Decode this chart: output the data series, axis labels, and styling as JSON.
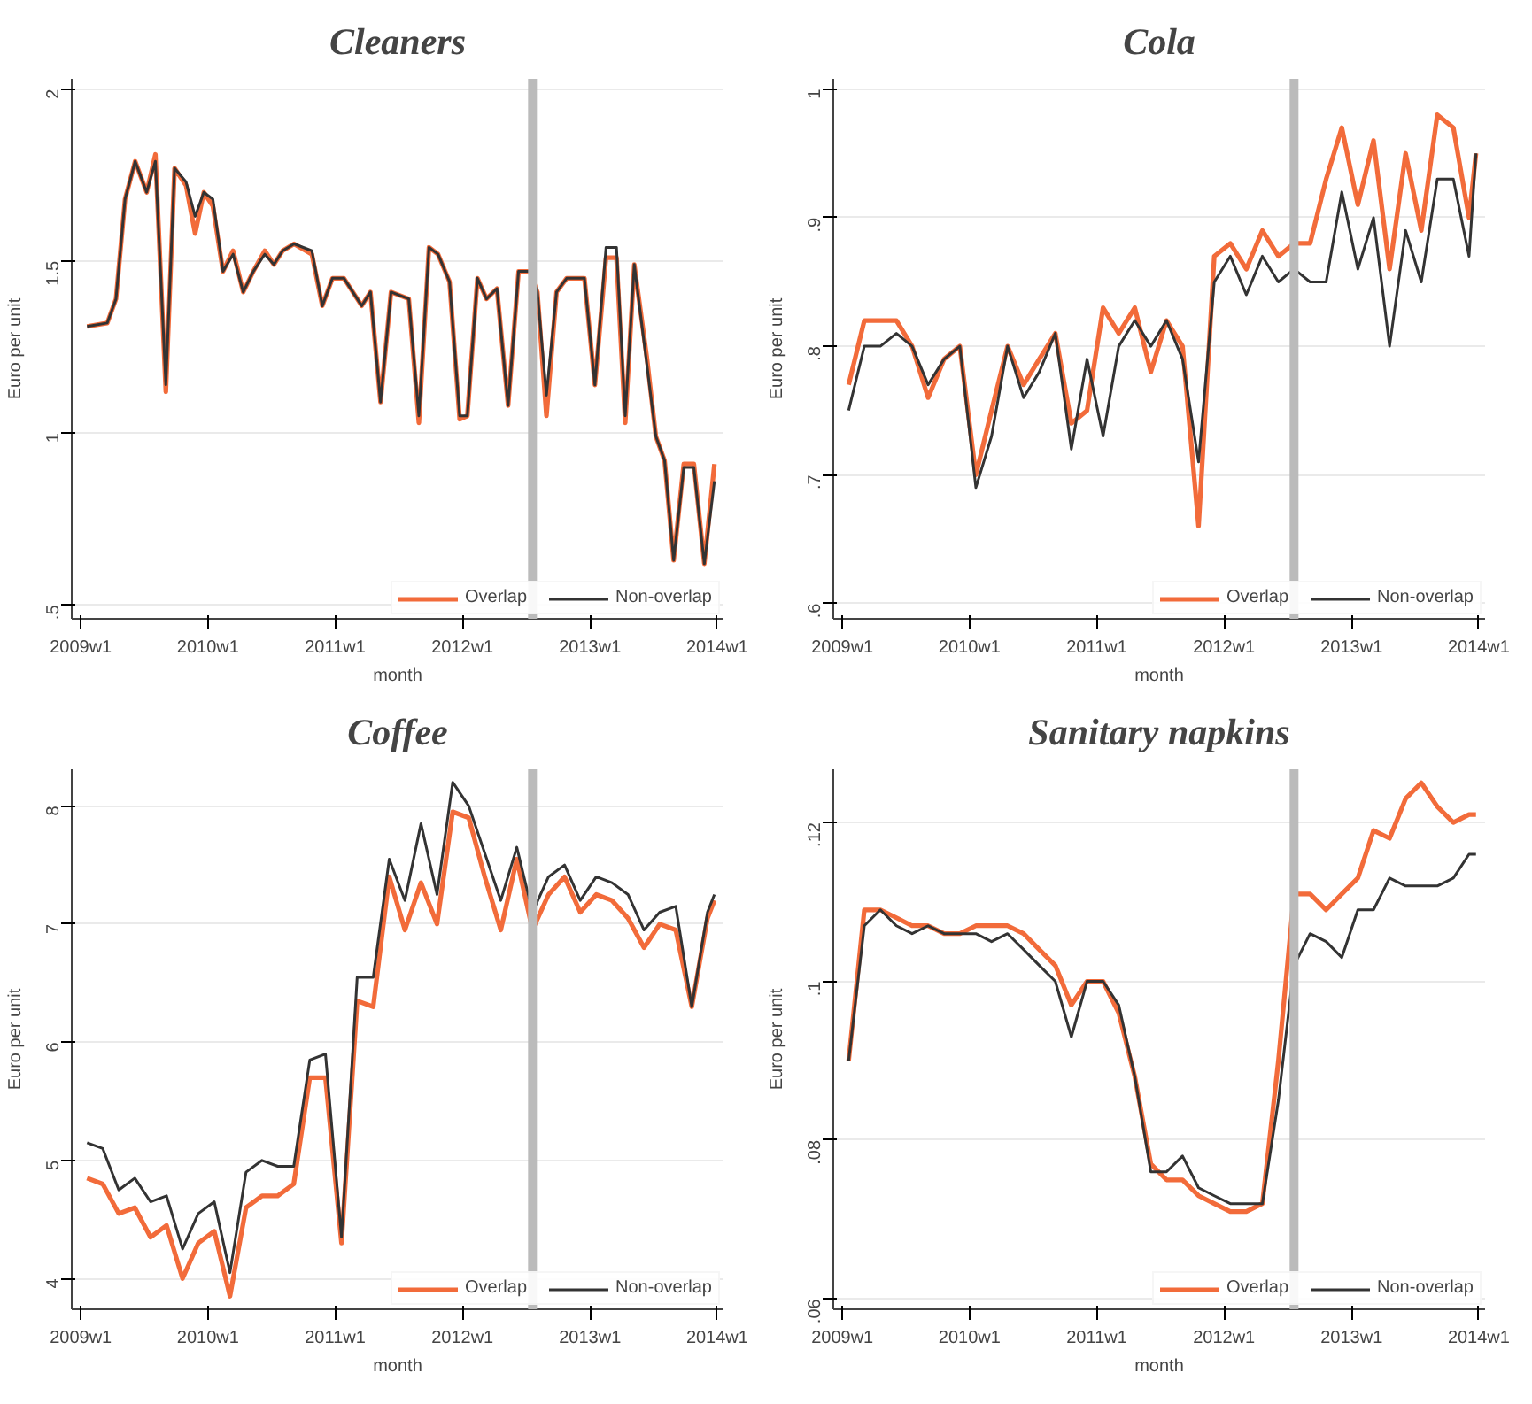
{
  "chart_data": [
    {
      "type": "line",
      "title": "Cleaners",
      "xlabel": "month",
      "ylabel": "Euro per unit",
      "grid": "y",
      "legend": "bottom right",
      "x": [
        "2009-01-19",
        "2009-03-18",
        "2009-04-12",
        "2009-05-08",
        "2009-06-06",
        "2009-07-09",
        "2009-08-03",
        "2009-09-02",
        "2009-09-27",
        "2009-10-30",
        "2009-11-25",
        "2009-12-20",
        "2010-01-15",
        "2010-02-13",
        "2010-03-14",
        "2010-04-12",
        "2010-05-11",
        "2010-06-13",
        "2010-07-09",
        "2010-08-03",
        "2010-09-05",
        "2010-10-26",
        "2010-11-25",
        "2010-12-24",
        "2011-01-26",
        "2011-03-18",
        "2011-04-12",
        "2011-05-11",
        "2011-06-10",
        "2011-07-31",
        "2011-08-29",
        "2011-09-27",
        "2011-10-23",
        "2011-11-25",
        "2011-12-24",
        "2012-01-15",
        "2012-02-13",
        "2012-03-10",
        "2012-04-09",
        "2012-05-11",
        "2012-06-10",
        "2012-07-12",
        "2012-08-03",
        "2012-08-29",
        "2012-09-27",
        "2012-10-26",
        "2012-12-16",
        "2013-01-15",
        "2013-02-16",
        "2013-03-18",
        "2013-04-12",
        "2013-05-08",
        "2013-06-13",
        "2013-07-09",
        "2013-08-03",
        "2013-08-29",
        "2013-09-27",
        "2013-10-26",
        "2013-11-25",
        "2013-12-24"
      ],
      "series": [
        {
          "name": "Overlap",
          "color": "#f26b3a",
          "values": [
            1.31,
            1.32,
            1.39,
            1.68,
            1.79,
            1.7,
            1.81,
            1.12,
            1.77,
            1.72,
            1.58,
            1.7,
            1.66,
            1.47,
            1.53,
            1.41,
            1.47,
            1.53,
            1.49,
            1.53,
            1.55,
            1.52,
            1.37,
            1.45,
            1.45,
            1.37,
            1.41,
            1.09,
            1.41,
            1.39,
            1.03,
            1.54,
            1.52,
            1.44,
            1.04,
            1.05,
            1.45,
            1.39,
            1.42,
            1.08,
            1.47,
            1.47,
            1.41,
            1.05,
            1.41,
            1.45,
            1.45,
            1.14,
            1.51,
            1.51,
            1.03,
            1.49,
            1.22,
            0.99,
            0.92,
            0.63,
            0.91,
            0.91,
            0.62,
            0.91
          ]
        },
        {
          "name": "Non-overlap",
          "color": "#333333",
          "values": [
            1.31,
            1.32,
            1.39,
            1.68,
            1.79,
            1.7,
            1.79,
            1.14,
            1.77,
            1.73,
            1.63,
            1.7,
            1.68,
            1.47,
            1.52,
            1.41,
            1.47,
            1.52,
            1.49,
            1.53,
            1.55,
            1.53,
            1.37,
            1.45,
            1.45,
            1.37,
            1.41,
            1.09,
            1.41,
            1.39,
            1.05,
            1.54,
            1.52,
            1.44,
            1.05,
            1.05,
            1.45,
            1.39,
            1.42,
            1.08,
            1.47,
            1.47,
            1.41,
            1.11,
            1.41,
            1.45,
            1.45,
            1.14,
            1.54,
            1.54,
            1.05,
            1.49,
            1.2,
            0.99,
            0.92,
            0.63,
            0.9,
            0.9,
            0.62,
            0.86
          ]
        }
      ],
      "xlim": [
        "2008-12-06",
        "2014-01-19"
      ],
      "xticks": [
        {
          "value": "2009-01-01",
          "label": "2009w1"
        },
        {
          "value": "2010-01-01",
          "label": "2010w1"
        },
        {
          "value": "2011-01-01",
          "label": "2011w1"
        },
        {
          "value": "2012-01-01",
          "label": "2012w1"
        },
        {
          "value": "2013-01-01",
          "label": "2013w1"
        },
        {
          "value": "2014-01-01",
          "label": "2014w1"
        }
      ],
      "ylim": [
        0.46,
        2.03
      ],
      "yticks": [
        {
          "value": 0.5,
          "label": ".5"
        },
        1,
        1.5,
        2
      ],
      "ref_lines": [
        {
          "axis": "x",
          "value": "2012-07-20",
          "color": "#bbbbbb"
        }
      ]
    },
    {
      "type": "line",
      "title": "Cola",
      "xlabel": "month",
      "ylabel": "Euro per unit",
      "grid": "y",
      "legend": "bottom right",
      "x": [
        "2009-01-19",
        "2009-03-05",
        "2009-04-20",
        "2009-06-05",
        "2009-07-20",
        "2009-09-04",
        "2009-10-20",
        "2009-12-04",
        "2010-01-19",
        "2010-03-05",
        "2010-04-20",
        "2010-06-05",
        "2010-07-20",
        "2010-09-04",
        "2010-10-20",
        "2010-12-04",
        "2011-01-19",
        "2011-03-05",
        "2011-04-20",
        "2011-06-05",
        "2011-07-20",
        "2011-09-04",
        "2011-10-20",
        "2011-12-04",
        "2012-01-19",
        "2012-03-05",
        "2012-04-20",
        "2012-06-05",
        "2012-07-20",
        "2012-09-04",
        "2012-10-20",
        "2012-12-04",
        "2013-01-19",
        "2013-03-05",
        "2013-04-20",
        "2013-06-05",
        "2013-07-20",
        "2013-09-04",
        "2013-10-20",
        "2013-12-04",
        "2013-12-24"
      ],
      "series": [
        {
          "name": "Overlap",
          "color": "#f26b3a",
          "values": [
            0.77,
            0.82,
            0.82,
            0.82,
            0.8,
            0.76,
            0.79,
            0.8,
            0.7,
            0.75,
            0.8,
            0.77,
            0.79,
            0.81,
            0.74,
            0.75,
            0.83,
            0.81,
            0.83,
            0.78,
            0.82,
            0.8,
            0.66,
            0.87,
            0.88,
            0.86,
            0.89,
            0.87,
            0.88,
            0.88,
            0.93,
            0.97,
            0.91,
            0.96,
            0.86,
            0.95,
            0.89,
            0.98,
            0.97,
            0.9,
            0.95
          ]
        },
        {
          "name": "Non-overlap",
          "color": "#333333",
          "values": [
            0.75,
            0.8,
            0.8,
            0.81,
            0.8,
            0.77,
            0.79,
            0.8,
            0.69,
            0.73,
            0.8,
            0.76,
            0.78,
            0.81,
            0.72,
            0.79,
            0.73,
            0.8,
            0.82,
            0.8,
            0.82,
            0.79,
            0.71,
            0.85,
            0.87,
            0.84,
            0.87,
            0.85,
            0.86,
            0.85,
            0.85,
            0.92,
            0.86,
            0.9,
            0.8,
            0.89,
            0.85,
            0.93,
            0.93,
            0.87,
            0.95
          ]
        }
      ],
      "xlim": [
        "2008-12-06",
        "2014-01-19"
      ],
      "xticks": [
        {
          "value": "2009-01-01",
          "label": "2009w1"
        },
        {
          "value": "2010-01-01",
          "label": "2010w1"
        },
        {
          "value": "2011-01-01",
          "label": "2011w1"
        },
        {
          "value": "2012-01-01",
          "label": "2012w1"
        },
        {
          "value": "2013-01-01",
          "label": "2013w1"
        },
        {
          "value": "2014-01-01",
          "label": "2014w1"
        }
      ],
      "ylim": [
        0.588,
        1.008
      ],
      "yticks": [
        {
          "value": 0.6,
          "label": ".6"
        },
        {
          "value": 0.7,
          "label": ".7"
        },
        {
          "value": 0.8,
          "label": ".8"
        },
        {
          "value": 0.9,
          "label": ".9"
        },
        1
      ],
      "ref_lines": [
        {
          "axis": "x",
          "value": "2012-07-20",
          "color": "#bbbbbb"
        }
      ]
    },
    {
      "type": "line",
      "title": "Coffee",
      "xlabel": "month",
      "ylabel": "Euro per unit",
      "grid": "y",
      "legend": "bottom right",
      "x": [
        "2009-01-19",
        "2009-03-05",
        "2009-04-20",
        "2009-06-05",
        "2009-07-20",
        "2009-09-04",
        "2009-10-20",
        "2009-12-04",
        "2010-01-19",
        "2010-03-05",
        "2010-04-20",
        "2010-06-05",
        "2010-07-20",
        "2010-09-04",
        "2010-10-20",
        "2010-12-04",
        "2011-01-19",
        "2011-03-05",
        "2011-04-20",
        "2011-06-05",
        "2011-07-20",
        "2011-09-04",
        "2011-10-20",
        "2011-12-04",
        "2012-01-19",
        "2012-03-05",
        "2012-04-20",
        "2012-06-05",
        "2012-07-20",
        "2012-09-04",
        "2012-10-20",
        "2012-12-04",
        "2013-01-19",
        "2013-03-05",
        "2013-04-20",
        "2013-06-05",
        "2013-07-20",
        "2013-09-04",
        "2013-10-20",
        "2013-12-04",
        "2013-12-24"
      ],
      "series": [
        {
          "name": "Overlap",
          "color": "#f26b3a",
          "values": [
            4.85,
            4.8,
            4.55,
            4.6,
            4.35,
            4.45,
            4.0,
            4.3,
            4.4,
            3.85,
            4.6,
            4.7,
            4.7,
            4.8,
            5.7,
            5.7,
            4.3,
            6.35,
            6.3,
            7.4,
            6.95,
            7.35,
            7.0,
            7.95,
            7.9,
            7.4,
            6.95,
            7.55,
            6.95,
            7.25,
            7.4,
            7.1,
            7.25,
            7.2,
            7.05,
            6.8,
            7.0,
            6.95,
            6.3,
            7.05,
            7.2
          ]
        },
        {
          "name": "Non-overlap",
          "color": "#333333",
          "values": [
            5.15,
            5.1,
            4.75,
            4.85,
            4.65,
            4.7,
            4.25,
            4.55,
            4.65,
            4.05,
            4.9,
            5.0,
            4.95,
            4.95,
            5.85,
            5.9,
            4.35,
            6.55,
            6.55,
            7.55,
            7.2,
            7.85,
            7.25,
            8.2,
            8.0,
            7.6,
            7.2,
            7.65,
            7.1,
            7.4,
            7.5,
            7.2,
            7.4,
            7.35,
            7.25,
            6.95,
            7.1,
            7.15,
            6.3,
            7.1,
            7.25
          ]
        }
      ],
      "xlim": [
        "2008-12-06",
        "2014-01-19"
      ],
      "xticks": [
        {
          "value": "2009-01-01",
          "label": "2009w1"
        },
        {
          "value": "2010-01-01",
          "label": "2010w1"
        },
        {
          "value": "2011-01-01",
          "label": "2011w1"
        },
        {
          "value": "2012-01-01",
          "label": "2012w1"
        },
        {
          "value": "2013-01-01",
          "label": "2013w1"
        },
        {
          "value": "2014-01-01",
          "label": "2014w1"
        }
      ],
      "ylim": [
        3.74,
        8.31
      ],
      "yticks": [
        4,
        5,
        6,
        7,
        8
      ],
      "ref_lines": [
        {
          "axis": "x",
          "value": "2012-07-20",
          "color": "#bbbbbb"
        }
      ]
    },
    {
      "type": "line",
      "title": "Sanitary napkins",
      "xlabel": "month",
      "ylabel": "Euro per unit",
      "grid": "y",
      "legend": "bottom right",
      "x": [
        "2009-01-19",
        "2009-03-05",
        "2009-04-20",
        "2009-06-05",
        "2009-07-20",
        "2009-09-04",
        "2009-10-20",
        "2009-12-04",
        "2010-01-19",
        "2010-03-05",
        "2010-04-20",
        "2010-06-05",
        "2010-07-20",
        "2010-09-04",
        "2010-10-20",
        "2010-12-04",
        "2011-01-19",
        "2011-03-05",
        "2011-04-20",
        "2011-06-05",
        "2011-07-20",
        "2011-09-04",
        "2011-10-20",
        "2011-12-04",
        "2012-01-19",
        "2012-03-05",
        "2012-04-20",
        "2012-06-05",
        "2012-07-20",
        "2012-09-04",
        "2012-10-20",
        "2012-12-04",
        "2013-01-19",
        "2013-03-05",
        "2013-04-20",
        "2013-06-05",
        "2013-07-20",
        "2013-09-04",
        "2013-10-20",
        "2013-12-04",
        "2013-12-24"
      ],
      "series": [
        {
          "name": "Overlap",
          "color": "#f26b3a",
          "values": [
            0.09,
            0.109,
            0.109,
            0.108,
            0.107,
            0.107,
            0.106,
            0.106,
            0.107,
            0.107,
            0.107,
            0.106,
            0.104,
            0.102,
            0.097,
            0.1,
            0.1,
            0.096,
            0.088,
            0.077,
            0.075,
            0.075,
            0.073,
            0.072,
            0.071,
            0.071,
            0.072,
            0.09,
            0.111,
            0.111,
            0.109,
            0.111,
            0.113,
            0.119,
            0.118,
            0.123,
            0.125,
            0.122,
            0.12,
            0.121,
            0.121
          ]
        },
        {
          "name": "Non-overlap",
          "color": "#333333",
          "values": [
            0.09,
            0.107,
            0.109,
            0.107,
            0.106,
            0.107,
            0.106,
            0.106,
            0.106,
            0.105,
            0.106,
            0.104,
            0.102,
            0.1,
            0.093,
            0.1,
            0.1,
            0.097,
            0.088,
            0.076,
            0.076,
            0.078,
            0.074,
            0.073,
            0.072,
            0.072,
            0.072,
            0.085,
            0.102,
            0.106,
            0.105,
            0.103,
            0.109,
            0.109,
            0.113,
            0.112,
            0.112,
            0.112,
            0.113,
            0.116,
            0.116
          ]
        }
      ],
      "xlim": [
        "2008-12-06",
        "2014-01-19"
      ],
      "xticks": [
        {
          "value": "2009-01-01",
          "label": "2009w1"
        },
        {
          "value": "2010-01-01",
          "label": "2010w1"
        },
        {
          "value": "2011-01-01",
          "label": "2011w1"
        },
        {
          "value": "2012-01-01",
          "label": "2012w1"
        },
        {
          "value": "2013-01-01",
          "label": "2013w1"
        },
        {
          "value": "2014-01-01",
          "label": "2014w1"
        }
      ],
      "ylim": [
        0.0587,
        0.1267
      ],
      "yticks": [
        {
          "value": 0.06,
          "label": ".06"
        },
        {
          "value": 0.08,
          "label": ".08"
        },
        {
          "value": 0.1,
          "label": ".1"
        },
        {
          "value": 0.12,
          "label": ".12"
        }
      ],
      "ref_lines": [
        {
          "axis": "x",
          "value": "2012-07-20",
          "color": "#bbbbbb"
        }
      ]
    }
  ]
}
